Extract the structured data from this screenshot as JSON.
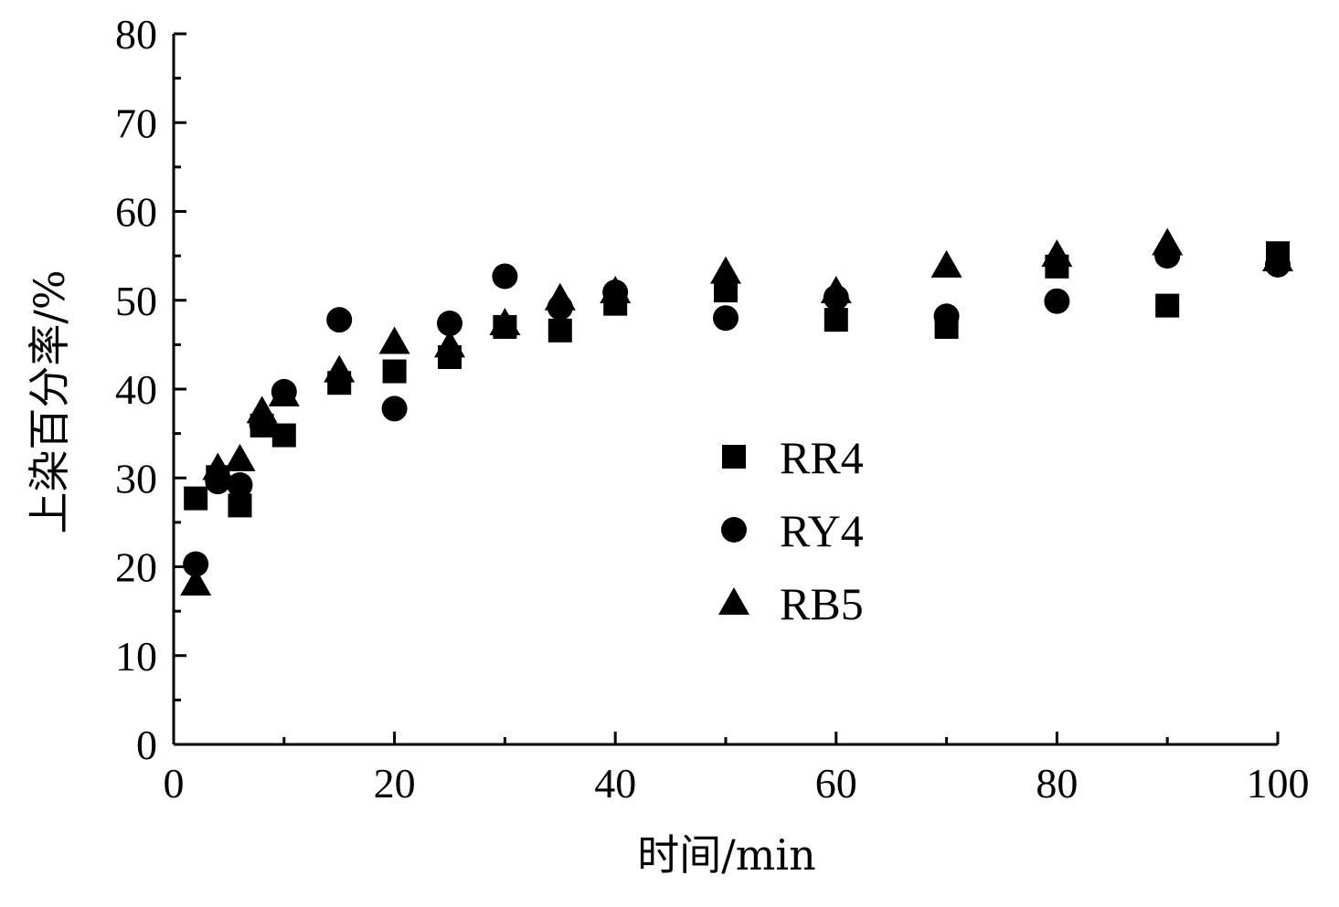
{
  "chart_data": {
    "type": "scatter",
    "xlabel": "时间/min",
    "ylabel": "上染百分率/%",
    "xlim": [
      0,
      100
    ],
    "ylim": [
      0,
      80
    ],
    "xticks": [
      0,
      20,
      40,
      60,
      80,
      100
    ],
    "yticks": [
      0,
      10,
      20,
      30,
      40,
      50,
      60,
      70,
      80
    ],
    "xtick_labels": [
      "0",
      "20",
      "40",
      "60",
      "80",
      "100"
    ],
    "ytick_labels": [
      "0",
      "10",
      "20",
      "30",
      "40",
      "50",
      "60",
      "70",
      "80"
    ],
    "grid": false,
    "legend_position": "center-right",
    "series": [
      {
        "name": "RR4",
        "marker": "square",
        "color": "#000000",
        "x": [
          2,
          4,
          6,
          8,
          10,
          15,
          20,
          25,
          30,
          35,
          40,
          50,
          60,
          70,
          80,
          90,
          100
        ],
        "y": [
          27.7,
          30.1,
          26.9,
          35.9,
          34.8,
          40.7,
          42.0,
          43.6,
          47.0,
          46.6,
          49.6,
          51.1,
          47.8,
          47.0,
          53.8,
          49.4,
          55.3
        ]
      },
      {
        "name": "RY4",
        "marker": "circle",
        "color": "#000000",
        "x": [
          2,
          4,
          6,
          8,
          10,
          15,
          20,
          25,
          30,
          35,
          40,
          50,
          60,
          70,
          80,
          90,
          100
        ],
        "y": [
          20.3,
          29.6,
          29.2,
          36.0,
          39.7,
          47.8,
          37.8,
          47.4,
          52.7,
          49.2,
          50.9,
          48.0,
          50.3,
          48.2,
          49.9,
          55.0,
          54.0
        ]
      },
      {
        "name": "RB5",
        "marker": "triangle",
        "color": "#000000",
        "x": [
          2,
          4,
          6,
          8,
          10,
          15,
          20,
          25,
          30,
          35,
          40,
          50,
          60,
          70,
          80,
          90,
          100
        ],
        "y": [
          18.1,
          31.1,
          32.1,
          37.5,
          39.4,
          42.1,
          45.3,
          44.9,
          47.4,
          50.2,
          51.0,
          53.2,
          51.0,
          53.9,
          55.1,
          56.4,
          54.6
        ]
      }
    ]
  }
}
